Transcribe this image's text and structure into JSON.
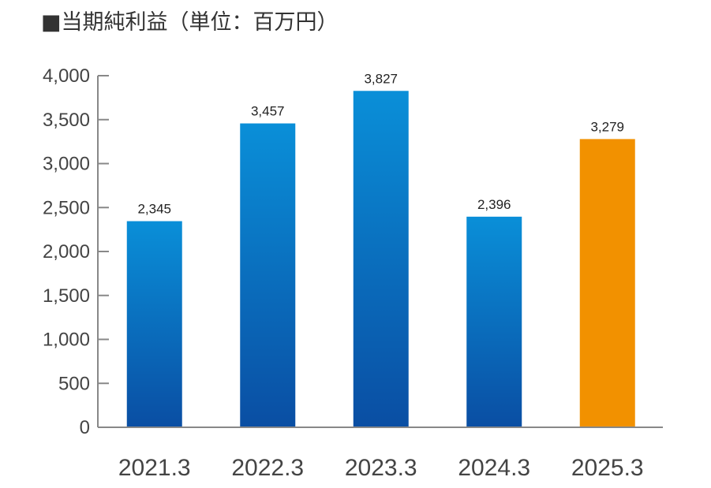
{
  "chart_data": {
    "type": "bar",
    "title": "■当期純利益（単位：百万円）",
    "categories": [
      "2021.3",
      "2022.3",
      "2023.3",
      "2024.3",
      "2025.3"
    ],
    "values": [
      2345,
      3457,
      3827,
      2396,
      3279
    ],
    "value_labels": [
      "2,345",
      "3,457",
      "3,827",
      "2,396",
      "3,279"
    ],
    "yticks": [
      0,
      500,
      1000,
      1500,
      2000,
      2500,
      3000,
      3500,
      4000
    ],
    "ytick_labels": [
      "0",
      "500",
      "1,000",
      "1,500",
      "2,000",
      "2,500",
      "3,000",
      "3,500",
      "4,000"
    ],
    "ylim": [
      0,
      4000
    ],
    "xlabel": "",
    "ylabel": "",
    "grid": false,
    "colors": {
      "bar_top": "#0a8fd8",
      "bar_bottom": "#0a4ea3",
      "highlight": "#f29100",
      "axis": "#888888"
    },
    "highlight_index": 4
  }
}
